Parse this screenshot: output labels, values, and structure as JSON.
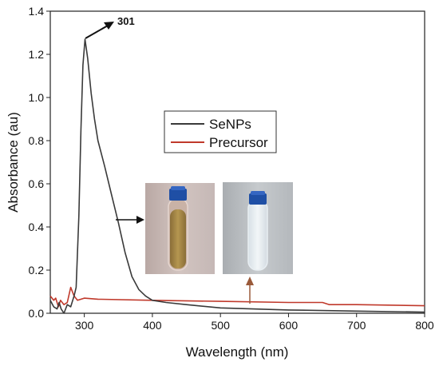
{
  "chart_data": {
    "type": "line",
    "xlabel": "Wavelength (nm)",
    "ylabel": "Absorbance (au)",
    "xlim": [
      250,
      800
    ],
    "ylim": [
      0,
      1.4
    ],
    "x_ticks": [
      300,
      400,
      500,
      600,
      700,
      800
    ],
    "y_ticks": [
      0.0,
      0.2,
      0.4,
      0.6,
      0.8,
      1.0,
      1.2,
      1.4
    ],
    "y_tick_labels": [
      "0.0",
      "0.2",
      "0.4",
      "0.6",
      "0.8",
      "1.0",
      "1.2",
      "1.4"
    ],
    "grid": false,
    "legend_position": "upper-middle",
    "series": [
      {
        "name": "SeNPs",
        "color": "#3a3a3a",
        "points": [
          [
            250,
            0.06
          ],
          [
            255,
            0.03
          ],
          [
            260,
            0.02
          ],
          [
            263,
            0.05
          ],
          [
            266,
            0.02
          ],
          [
            270,
            0.0
          ],
          [
            275,
            0.04
          ],
          [
            280,
            0.03
          ],
          [
            285,
            0.08
          ],
          [
            288,
            0.12
          ],
          [
            292,
            0.45
          ],
          [
            295,
            0.85
          ],
          [
            298,
            1.15
          ],
          [
            301,
            1.27
          ],
          [
            305,
            1.18
          ],
          [
            310,
            1.02
          ],
          [
            315,
            0.9
          ],
          [
            320,
            0.8
          ],
          [
            330,
            0.68
          ],
          [
            340,
            0.55
          ],
          [
            350,
            0.42
          ],
          [
            360,
            0.28
          ],
          [
            370,
            0.17
          ],
          [
            380,
            0.11
          ],
          [
            390,
            0.08
          ],
          [
            400,
            0.06
          ],
          [
            420,
            0.05
          ],
          [
            450,
            0.04
          ],
          [
            500,
            0.025
          ],
          [
            600,
            0.015
          ],
          [
            700,
            0.01
          ],
          [
            800,
            0.005
          ]
        ]
      },
      {
        "name": "Precursor",
        "color": "#c0392b",
        "points": [
          [
            250,
            0.08
          ],
          [
            255,
            0.06
          ],
          [
            258,
            0.07
          ],
          [
            262,
            0.03
          ],
          [
            265,
            0.06
          ],
          [
            270,
            0.04
          ],
          [
            275,
            0.05
          ],
          [
            280,
            0.12
          ],
          [
            285,
            0.08
          ],
          [
            290,
            0.06
          ],
          [
            300,
            0.07
          ],
          [
            320,
            0.065
          ],
          [
            400,
            0.06
          ],
          [
            500,
            0.055
          ],
          [
            600,
            0.05
          ],
          [
            650,
            0.05
          ],
          [
            660,
            0.04
          ],
          [
            700,
            0.04
          ],
          [
            800,
            0.035
          ]
        ]
      }
    ],
    "annotations": [
      {
        "text": "301",
        "x": 301,
        "y": 1.27
      }
    ],
    "inset_photos": [
      {
        "caption": "SeNPs vial",
        "liquid_color": "#a88848",
        "cap_color": "#1f4fa5"
      },
      {
        "caption": "Precursor vial",
        "liquid_color": "#e6eef4",
        "cap_color": "#1f4fa5"
      }
    ],
    "arrow_color_dark": "#111111",
    "arrow_color_brown": "#9a5a3a"
  }
}
